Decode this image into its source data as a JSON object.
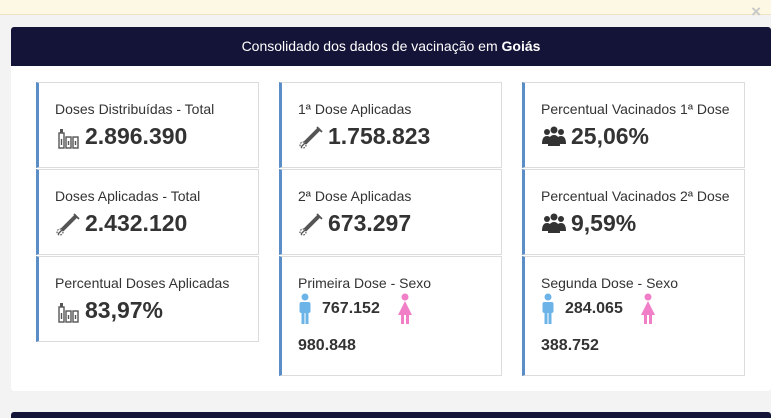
{
  "panel": {
    "title_prefix": "Consolidado dos dados de vacinação em",
    "title_state": "Goiás"
  },
  "cards": {
    "doses_distribuidas": {
      "label": "Doses Distribuídas - Total",
      "value": "2.896.390",
      "icon": "vaccine-vials-icon"
    },
    "doses_aplicadas": {
      "label": "Doses Aplicadas - Total",
      "value": "2.432.120",
      "icon": "syringe-icon"
    },
    "percentual_doses": {
      "label": "Percentual Doses Aplicadas",
      "value": "83,97%",
      "icon": "vaccine-vials-icon"
    },
    "primeira_dose": {
      "label": "1ª Dose Aplicadas",
      "value": "1.758.823",
      "icon": "syringe-icon"
    },
    "segunda_dose": {
      "label": "2ª Dose Aplicadas",
      "value": "673.297",
      "icon": "syringe-icon"
    },
    "primeira_sexo": {
      "label": "Primeira Dose - Sexo",
      "male": "767.152",
      "female": "980.848"
    },
    "perc_primeira": {
      "label": "Percentual Vacinados 1ª Dose",
      "value": "25,06%",
      "icon": "people-group-icon"
    },
    "perc_segunda": {
      "label": "Percentual Vacinados 2ª Dose",
      "value": "9,59%",
      "icon": "people-group-icon"
    },
    "segunda_sexo": {
      "label": "Segunda Dose - Sexo",
      "male": "284.065",
      "female": "388.752"
    }
  },
  "colors": {
    "header": "#141338",
    "accent": "#5b8dc6",
    "male": "#6cb4e8",
    "female": "#f07fc8"
  }
}
